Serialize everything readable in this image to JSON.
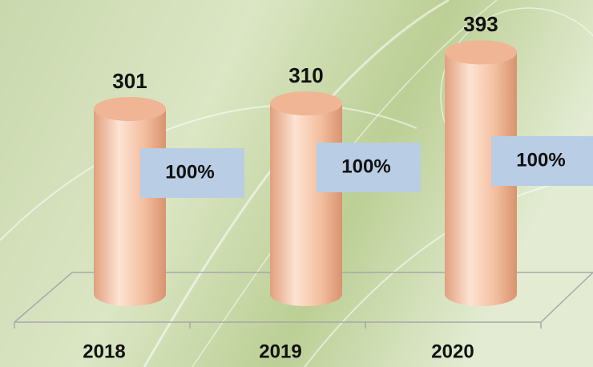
{
  "chart_data": {
    "type": "cylinder",
    "categories": [
      "2018",
      "2019",
      "2020"
    ],
    "values": [
      301,
      310,
      393
    ],
    "percent_labels": [
      "100%",
      "100%",
      "100%"
    ],
    "color": "#f2b99a",
    "ylim": [
      0,
      400
    ]
  }
}
